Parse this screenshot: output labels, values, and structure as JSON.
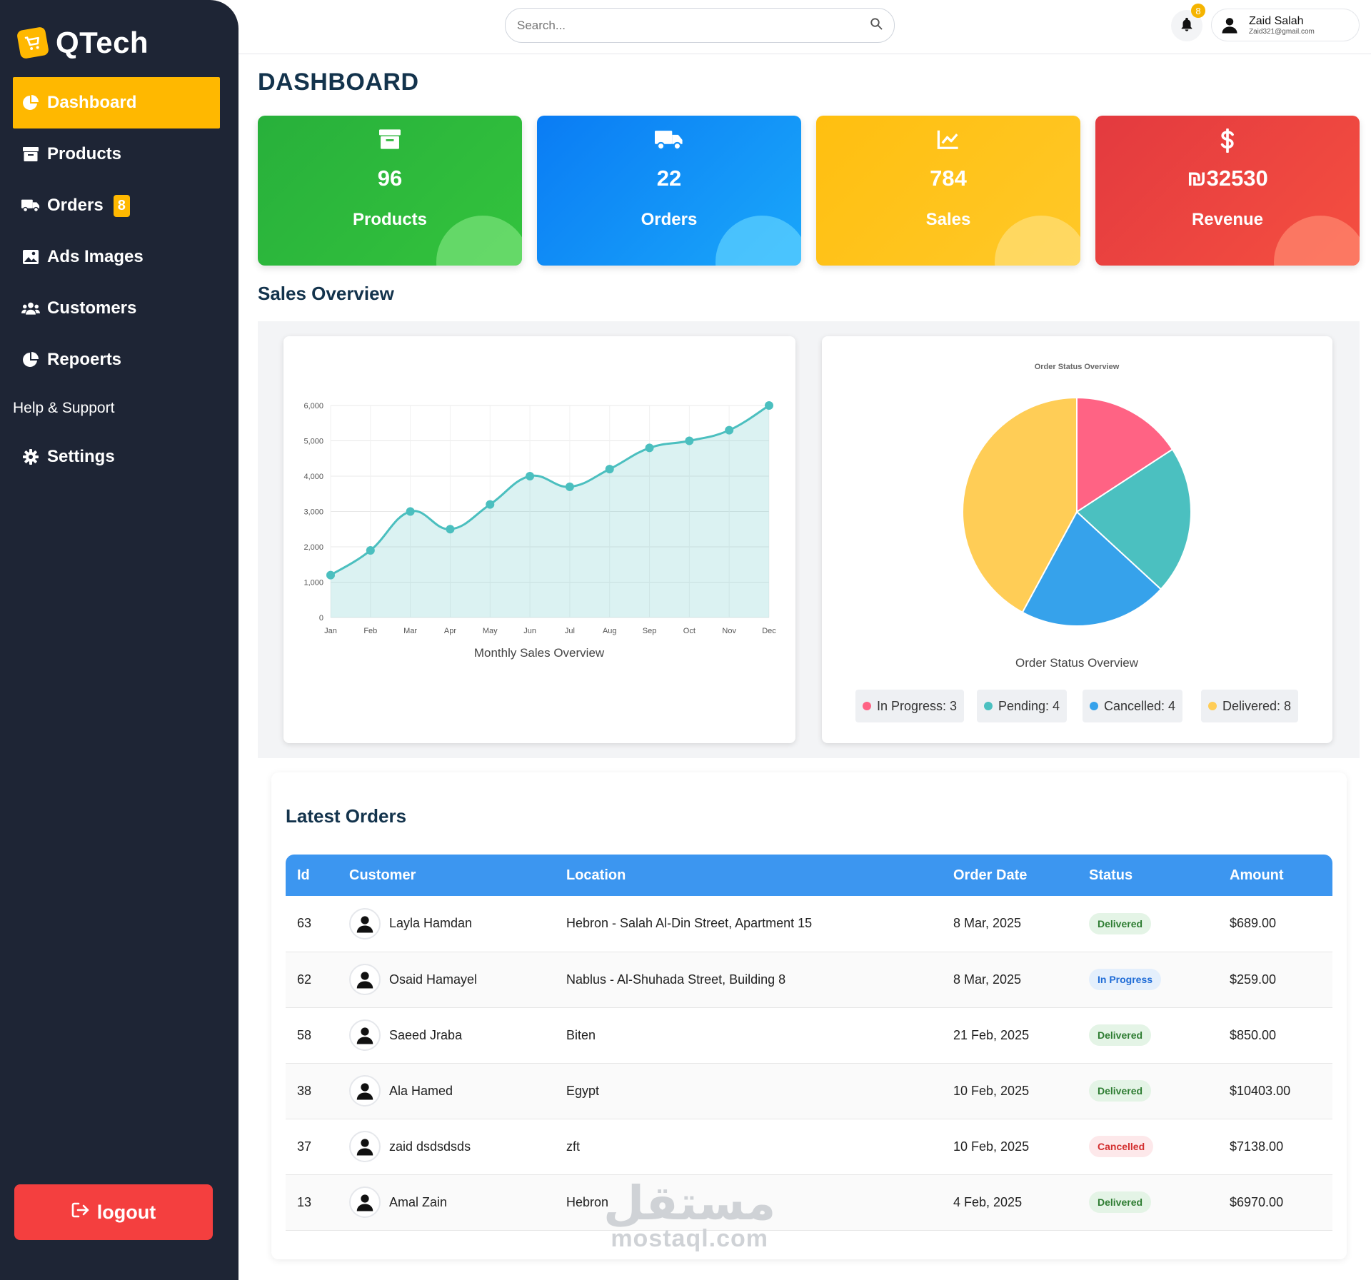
{
  "app": {
    "logo": "QTech"
  },
  "sidebar": {
    "items": [
      {
        "label": "Dashboard",
        "icon": "pie-chart-icon"
      },
      {
        "label": "Products",
        "icon": "archive-icon"
      },
      {
        "label": "Orders",
        "icon": "truck-icon",
        "badge": "8"
      },
      {
        "label": "Ads Images",
        "icon": "image-icon"
      },
      {
        "label": "Customers",
        "icon": "users-icon"
      },
      {
        "label": "Repoerts",
        "icon": "pie-chart-icon"
      },
      {
        "label": "Help & Support"
      },
      {
        "label": "Settings",
        "icon": "gear-icon"
      }
    ],
    "logout": "logout"
  },
  "topbar": {
    "search_placeholder": "Search...",
    "notifications": "8",
    "user_name": "Zaid Salah",
    "user_email": "Zaid321@gmail.com"
  },
  "page": {
    "title": "DASHBOARD"
  },
  "stats": [
    {
      "value": "96",
      "label": "Products",
      "color": "#2ebd3b",
      "icon": "archive-icon"
    },
    {
      "value": "22",
      "label": "Orders",
      "color": "#0b8bf5",
      "icon": "truck-icon"
    },
    {
      "value": "784",
      "label": "Sales",
      "color": "#ffc114",
      "icon": "chart-line-icon"
    },
    {
      "value": "₪32530",
      "label": "Revenue",
      "color": "#ef4040",
      "icon": "dollar-icon"
    }
  ],
  "sections": {
    "overview": "Sales Overview",
    "orders": "Latest Orders"
  },
  "chart_data": [
    {
      "type": "area",
      "title": "Monthly Sales Overview",
      "x": [
        "Jan",
        "Feb",
        "Mar",
        "Apr",
        "May",
        "Jun",
        "Jul",
        "Aug",
        "Sep",
        "Oct",
        "Nov",
        "Dec"
      ],
      "series": [
        {
          "values": [
            1200,
            1900,
            3000,
            2500,
            3200,
            4000,
            3700,
            4200,
            4800,
            5000,
            5300,
            6000
          ]
        }
      ],
      "yticks": [
        "0",
        "1,000",
        "2,000",
        "3,000",
        "4,000",
        "5,000",
        "6,000"
      ],
      "ylim": [
        0,
        6000
      ],
      "grid": true,
      "color": "#4bbfbf"
    },
    {
      "type": "pie",
      "title": "Order Status Overview",
      "caption": "Order Status Overview",
      "slices": [
        {
          "name": "In Progress",
          "value": 3,
          "color": "#ff6384"
        },
        {
          "name": "Pending",
          "value": 4,
          "color": "#4bc0c0"
        },
        {
          "name": "Cancelled",
          "value": 4,
          "color": "#36a2eb"
        },
        {
          "name": "Delivered",
          "value": 8,
          "color": "#ffcd56"
        }
      ]
    }
  ],
  "legend": [
    {
      "text": "In Progress: 3",
      "color": "#ff6384"
    },
    {
      "text": "Pending: 4",
      "color": "#4bc0c0"
    },
    {
      "text": "Cancelled: 4",
      "color": "#36a2eb"
    },
    {
      "text": "Delivered: 8",
      "color": "#ffcd56"
    }
  ],
  "orders": {
    "headers": [
      "Id",
      "Customer",
      "Location",
      "Order Date",
      "Status",
      "Amount"
    ],
    "rows": [
      {
        "id": "63",
        "customer": "Layla Hamdan",
        "location": "Hebron - Salah Al-Din Street, Apartment 15",
        "date": "8 Mar, 2025",
        "status": "Delivered",
        "status_class": "delivered",
        "amount": "$689.00"
      },
      {
        "id": "62",
        "customer": "Osaid Hamayel",
        "location": "Nablus - Al-Shuhada Street, Building 8",
        "date": "8 Mar, 2025",
        "status": "In Progress",
        "status_class": "inprogress",
        "amount": "$259.00"
      },
      {
        "id": "58",
        "customer": "Saeed Jraba",
        "location": "Biten",
        "date": "21 Feb, 2025",
        "status": "Delivered",
        "status_class": "delivered",
        "amount": "$850.00"
      },
      {
        "id": "38",
        "customer": "Ala Hamed",
        "location": "Egypt",
        "date": "10 Feb, 2025",
        "status": "Delivered",
        "status_class": "delivered",
        "amount": "$10403.00"
      },
      {
        "id": "37",
        "customer": "zaid dsdsdsds",
        "location": "zft",
        "date": "10 Feb, 2025",
        "status": "Cancelled",
        "status_class": "cancelled",
        "amount": "$7138.00"
      },
      {
        "id": "13",
        "customer": "Amal Zain",
        "location": "Hebron",
        "date": "4 Feb, 2025",
        "status": "Delivered",
        "status_class": "delivered",
        "amount": "$6970.00"
      }
    ]
  },
  "watermark": {
    "arabic": "مستقل",
    "latin": "mostaql.com"
  }
}
